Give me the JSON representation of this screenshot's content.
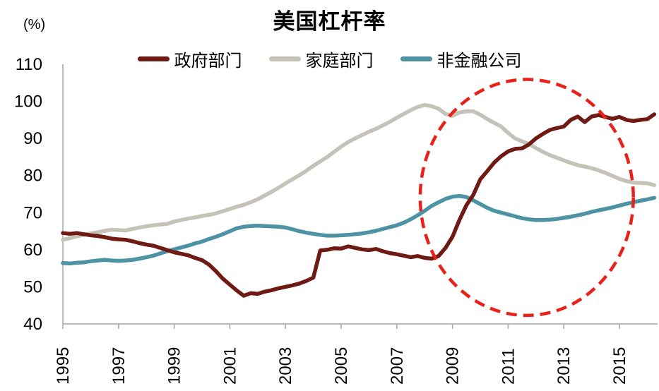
{
  "title": "美国杠杆率",
  "colors": {
    "government": "#6f1a13",
    "household": "#c5c3b7",
    "nonfinancial": "#4e93a3",
    "highlight": "#e8221a",
    "axis": "#a6a6a6",
    "text": "#000000"
  },
  "chart_data": {
    "type": "line",
    "title": "美国杠杆率",
    "ylabel": "(%)",
    "xlabel": "",
    "grid": false,
    "legend_position": "top",
    "ylim": [
      40,
      110
    ],
    "y_ticks": [
      40,
      50,
      60,
      70,
      80,
      90,
      100,
      110
    ],
    "x_start": 1995.0,
    "x_step": 0.25,
    "x_end": 2016.25,
    "x_tick_years": [
      1995,
      1997,
      1999,
      2001,
      2003,
      2005,
      2007,
      2009,
      2011,
      2013,
      2015
    ],
    "x_tick_labels": [
      "1995",
      "1997",
      "1999",
      "2001",
      "2003",
      "2005",
      "2007",
      "2009",
      "2011",
      "2013",
      "2015"
    ],
    "series": [
      {
        "name": "政府部门",
        "id": "government-sector",
        "color": "#6f1a13",
        "values": [
          64.5,
          64.3,
          64.5,
          64.2,
          63.9,
          63.7,
          63.4,
          63.0,
          62.8,
          62.7,
          62.3,
          61.8,
          61.4,
          61.1,
          60.5,
          59.9,
          59.3,
          58.9,
          58.5,
          57.8,
          57.2,
          56.0,
          54.2,
          52.2,
          50.6,
          49.0,
          47.6,
          48.3,
          48.1,
          48.7,
          49.1,
          49.6,
          50.0,
          50.4,
          50.9,
          51.6,
          52.5,
          59.8,
          60.0,
          60.4,
          60.3,
          60.9,
          60.5,
          60.1,
          59.9,
          60.2,
          59.6,
          59.1,
          58.8,
          58.4,
          58.0,
          58.3,
          57.8,
          57.6,
          58.3,
          60.5,
          63.5,
          68.0,
          72.0,
          74.8,
          79.0,
          81.2,
          83.5,
          85.2,
          86.5,
          87.2,
          87.3,
          88.4,
          90.0,
          91.2,
          92.3,
          92.8,
          93.2,
          95.0,
          95.9,
          94.4,
          95.9,
          96.3,
          95.8,
          95.3,
          95.8,
          95.0,
          94.7,
          95.0,
          95.2,
          96.5
        ]
      },
      {
        "name": "家庭部门",
        "id": "household-sector",
        "color": "#c5c3b7",
        "values": [
          62.7,
          63.1,
          63.6,
          64.0,
          64.4,
          64.7,
          65.1,
          65.4,
          65.3,
          65.2,
          65.6,
          66.0,
          66.3,
          66.6,
          66.8,
          67.0,
          67.6,
          68.0,
          68.4,
          68.7,
          69.1,
          69.4,
          69.8,
          70.4,
          71.0,
          71.6,
          72.1,
          72.8,
          73.6,
          74.6,
          75.6,
          76.7,
          77.9,
          79.0,
          80.1,
          81.3,
          82.6,
          83.8,
          85.0,
          86.4,
          87.8,
          89.0,
          90.0,
          90.9,
          91.8,
          92.6,
          93.5,
          94.5,
          95.6,
          96.6,
          97.6,
          98.5,
          99.0,
          98.7,
          98.0,
          96.6,
          96.1,
          97.0,
          97.3,
          97.3,
          96.4,
          95.2,
          94.2,
          93.2,
          91.5,
          90.0,
          89.2,
          88.5,
          87.4,
          86.4,
          85.5,
          84.8,
          84.1,
          83.4,
          82.8,
          82.4,
          82.0,
          81.4,
          80.7,
          79.9,
          79.1,
          78.5,
          78.1,
          78.0,
          77.9,
          77.4
        ]
      },
      {
        "name": "非金融公司",
        "id": "non-financial-corporate",
        "color": "#4e93a3",
        "values": [
          56.4,
          56.3,
          56.5,
          56.6,
          56.9,
          57.1,
          57.3,
          57.1,
          57.0,
          57.1,
          57.3,
          57.6,
          58.0,
          58.4,
          59.0,
          59.6,
          60.1,
          60.6,
          61.1,
          61.7,
          62.2,
          62.9,
          63.5,
          64.2,
          65.0,
          65.8,
          66.2,
          66.4,
          66.5,
          66.4,
          66.3,
          66.2,
          66.0,
          65.5,
          65.0,
          64.6,
          64.3,
          64.0,
          63.8,
          63.8,
          63.9,
          64.0,
          64.2,
          64.4,
          64.7,
          65.1,
          65.6,
          66.1,
          66.6,
          67.3,
          68.2,
          69.3,
          70.5,
          71.8,
          72.8,
          73.7,
          74.3,
          74.5,
          74.2,
          73.3,
          72.3,
          71.3,
          70.5,
          70.0,
          69.5,
          69.0,
          68.5,
          68.2,
          68.0,
          68.0,
          68.1,
          68.3,
          68.6,
          68.9,
          69.3,
          69.7,
          70.2,
          70.6,
          71.0,
          71.4,
          71.9,
          72.4,
          72.8,
          73.2,
          73.6,
          74.0
        ]
      }
    ],
    "annotations": {
      "highlight_ellipse": {
        "shape": "ellipse",
        "style": "dashed",
        "color": "#e8221a",
        "center_x_year": 2011.67,
        "center_y_value": 74.1,
        "radius_x_years": 3.83,
        "radius_y_values": 31.8
      }
    }
  }
}
